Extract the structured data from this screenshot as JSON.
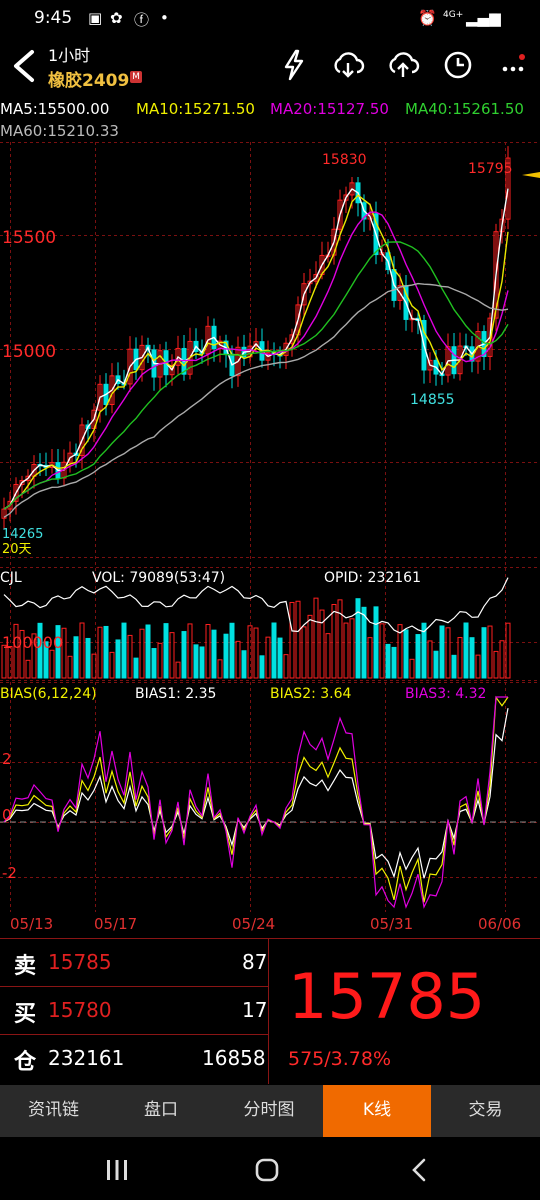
{
  "status_bar": {
    "time": "9:45",
    "left_icons": [
      "gallery-icon",
      "app-colorful-icon",
      "facebook-icon",
      "dot-icon"
    ],
    "right_icons": [
      "alarm-icon",
      "network-4g-icon",
      "signal-icon",
      "battery-icon"
    ],
    "network": "4G+"
  },
  "header": {
    "period": "1小时",
    "contract": "橡胶2409",
    "badge": "M",
    "icons": [
      "lightning-icon",
      "cloud-download-icon",
      "cloud-upload-icon",
      "clock-icon",
      "more-icon"
    ]
  },
  "ma": {
    "ma5": "MA5:15500.00",
    "ma10": "MA10:15271.50",
    "ma20": "MA20:15127.50",
    "ma40": "MA40:15261.50",
    "ma60": "MA60:15210.33",
    "colors": {
      "ma5": "#ffffff",
      "ma10": "#e8e800",
      "ma20": "#e000e0",
      "ma40": "#20c020",
      "ma60": "#aaaaaa"
    }
  },
  "price_chart": {
    "axis_labels": [
      "15500",
      "15000"
    ],
    "axis_values": [
      15500,
      15000
    ],
    "high_label": "15830",
    "last_label": "15795",
    "low_label": "14855",
    "start_label": "14265",
    "bottom_note": "20天",
    "up_color": "#ff2020",
    "down_color": "#00e0e0"
  },
  "volume": {
    "name": "CJL",
    "vol": "VOL: 79089(53:47)",
    "opid": "OPID: 232161",
    "axis_label": "100000"
  },
  "bias": {
    "name": "BIAS(6,12,24)",
    "bias1": "BIAS1: 2.35",
    "bias2": "BIAS2: 3.64",
    "bias3": "BIAS3: 4.32",
    "axis_labels": [
      "2",
      "0",
      "-2"
    ]
  },
  "dates": [
    "05/13",
    "05/17",
    "05/24",
    "05/31",
    "06/06"
  ],
  "quote": {
    "sell_label": "卖",
    "sell_price": "15785",
    "sell_volume": "87",
    "buy_label": "买",
    "buy_price": "15780",
    "buy_volume": "17",
    "oi_label": "仓",
    "open_interest": "232161",
    "oi_change": "16858",
    "last_price": "15785",
    "change": "575/3.78%"
  },
  "tabs": [
    {
      "label": "资讯链",
      "active": false
    },
    {
      "label": "盘口",
      "active": false
    },
    {
      "label": "分时图",
      "active": false
    },
    {
      "label": "K线",
      "active": true
    },
    {
      "label": "交易",
      "active": false
    }
  ],
  "navbar": {
    "icons": [
      "recents-icon",
      "home-icon",
      "back-nav-icon"
    ]
  }
}
